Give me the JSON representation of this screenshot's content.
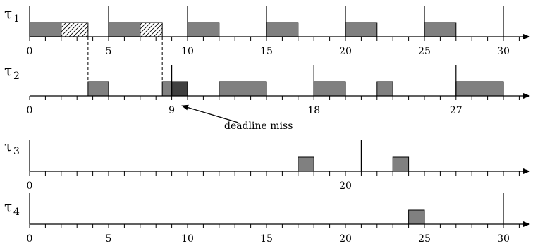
{
  "colors": {
    "exec": "#808080",
    "miss": "#404040",
    "line": "#000000"
  },
  "timelines": [
    {
      "symbol": "τ",
      "sub": "1",
      "release_marks": [
        0,
        5,
        10,
        15,
        20,
        25,
        30
      ],
      "ticks": [
        0,
        5,
        10,
        15,
        20,
        25,
        30
      ],
      "tick_labels": [
        "0",
        "5",
        "10",
        "15",
        "20",
        "25",
        "30"
      ],
      "blocks": [
        {
          "start": 0,
          "end": 2,
          "style": "exec"
        },
        {
          "start": 2,
          "end": 3.7,
          "style": "hatch"
        },
        {
          "start": 5,
          "end": 7,
          "style": "exec"
        },
        {
          "start": 7,
          "end": 8.4,
          "style": "hatch"
        },
        {
          "start": 10,
          "end": 12,
          "style": "exec"
        },
        {
          "start": 15,
          "end": 17,
          "style": "exec"
        },
        {
          "start": 20,
          "end": 22,
          "style": "exec"
        },
        {
          "start": 25,
          "end": 27,
          "style": "exec"
        }
      ]
    },
    {
      "symbol": "τ",
      "sub": "2",
      "release_marks": [
        9,
        18,
        27
      ],
      "ticks": [
        0,
        9,
        18,
        27
      ],
      "tick_labels": [
        "0",
        "9",
        "18",
        "27"
      ],
      "blocks": [
        {
          "start": 3.7,
          "end": 5,
          "style": "exec"
        },
        {
          "start": 8.4,
          "end": 9,
          "style": "exec"
        },
        {
          "start": 9,
          "end": 10,
          "style": "miss"
        },
        {
          "start": 12,
          "end": 15,
          "style": "exec"
        },
        {
          "start": 18,
          "end": 20,
          "style": "exec"
        },
        {
          "start": 22,
          "end": 23,
          "style": "exec"
        },
        {
          "start": 27,
          "end": 30,
          "style": "exec"
        }
      ]
    },
    {
      "symbol": "τ",
      "sub": "3",
      "release_marks": [
        0,
        21
      ],
      "ticks": [
        0,
        20
      ],
      "tick_labels": [
        "0",
        "20"
      ],
      "blocks": [
        {
          "start": 17,
          "end": 18,
          "style": "exec"
        },
        {
          "start": 23,
          "end": 24,
          "style": "exec"
        }
      ]
    },
    {
      "symbol": "τ",
      "sub": "4",
      "release_marks": [
        0,
        30
      ],
      "ticks": [
        0,
        5,
        10,
        15,
        20,
        25,
        30
      ],
      "tick_labels": [
        "0",
        "5",
        "10",
        "15",
        "20",
        "25",
        "30"
      ],
      "blocks": [
        {
          "start": 24,
          "end": 25,
          "style": "exec"
        }
      ]
    }
  ],
  "dashed_links": [
    3.7,
    8.4
  ],
  "annotation": {
    "text": "deadline miss",
    "at": 10
  }
}
